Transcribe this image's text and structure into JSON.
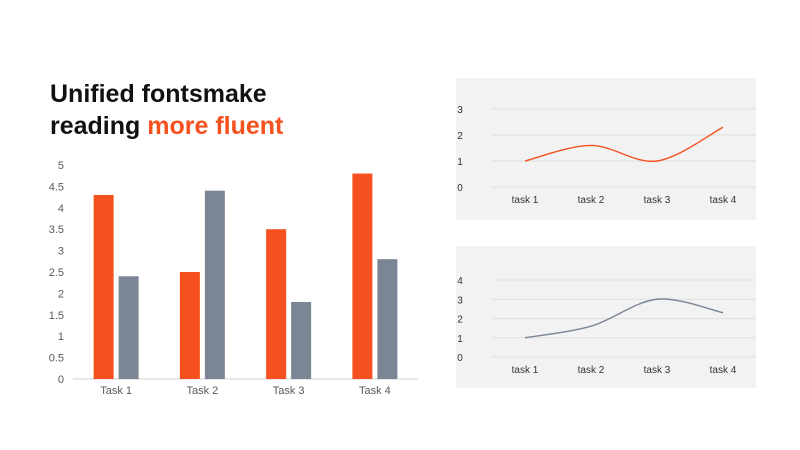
{
  "headline": {
    "line1": "Unified fontsmake",
    "line2_plain": "reading ",
    "line2_accent": "more fluent"
  },
  "colors": {
    "orange": "#f4511e",
    "slate": "#7b8694",
    "panel_bg": "#f2f2f2",
    "grid": "#e0e0e0",
    "tick_text": "#595959",
    "headline": "#111111"
  },
  "chart_data": [
    {
      "type": "bar",
      "categories": [
        "Task 1",
        "Task 2",
        "Task 3",
        "Task 4"
      ],
      "series": [
        {
          "values": [
            4.3,
            2.5,
            3.5,
            4.8
          ],
          "color": "#f4511e"
        },
        {
          "values": [
            2.4,
            4.4,
            1.8,
            2.8
          ],
          "color": "#7b8694"
        }
      ],
      "yticks": [
        "0",
        "0.5",
        "1",
        "1.5",
        "2",
        "2.5",
        "3",
        "3.5",
        "4",
        "4.5",
        "5"
      ],
      "ylim": [
        0,
        5
      ],
      "grid": false
    },
    {
      "type": "line",
      "categories": [
        "task 1",
        "task 2",
        "task 3",
        "task 4"
      ],
      "series": [
        {
          "values": [
            1.0,
            1.6,
            1.0,
            2.3
          ],
          "color": "#f4511e",
          "smooth": true
        }
      ],
      "yticks": [
        "0",
        "1",
        "2",
        "3"
      ],
      "ylim": [
        0,
        3
      ],
      "grid": true
    },
    {
      "type": "line",
      "categories": [
        "task 1",
        "task 2",
        "task 3",
        "task 4"
      ],
      "series": [
        {
          "values": [
            1.0,
            1.6,
            3.0,
            2.3
          ],
          "color": "#7b8694",
          "smooth": true
        }
      ],
      "yticks": [
        "0",
        "1",
        "2",
        "3",
        "4"
      ],
      "ylim": [
        0,
        4
      ],
      "grid": true
    }
  ]
}
